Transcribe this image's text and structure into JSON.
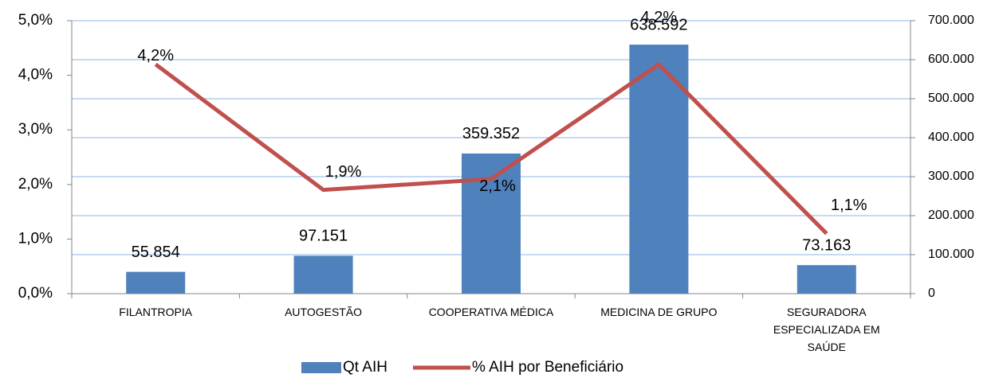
{
  "chart_data": {
    "type": "bar_line",
    "categories": [
      "FILANTROPIA",
      "AUTOGESTÃO",
      "COOPERATIVA MÉDICA",
      "MEDICINA DE GRUPO",
      "SEGURADORA ESPECIALIZADA EM SAÚDE"
    ],
    "series": [
      {
        "name": "Qt AIH",
        "type": "bar",
        "color": "#4f81bd",
        "axis": "y2",
        "values": [
          55854,
          97151,
          359352,
          638592,
          73163
        ],
        "value_labels": [
          "55.854",
          "97.151",
          "359.352",
          "638.592",
          "73.163"
        ]
      },
      {
        "name": "% AIH por Beneficiário",
        "type": "line",
        "color": "#c0504d",
        "axis": "y",
        "values": [
          4.2,
          1.9,
          2.1,
          4.2,
          1.1
        ],
        "value_labels": [
          "4,2%",
          "1,9%",
          "2,1%",
          "4,2%",
          "1,1%"
        ]
      }
    ],
    "ylim": [
      0,
      5
    ],
    "yticks": [
      {
        "value": 0,
        "label": "0,0%"
      },
      {
        "value": 1,
        "label": "1,0%"
      },
      {
        "value": 2,
        "label": "2,0%"
      },
      {
        "value": 3,
        "label": "3,0%"
      },
      {
        "value": 4,
        "label": "4,0%"
      },
      {
        "value": 5,
        "label": "5,0%"
      }
    ],
    "y2lim": [
      0,
      700000
    ],
    "y2ticks": [
      0,
      {
        "value": 100000,
        "label": "100.000"
      },
      {
        "value": 200000,
        "label": "200.000"
      },
      {
        "value": 300000,
        "label": "300.000"
      },
      {
        "value": 400000,
        "label": "400.000"
      },
      {
        "value": 500000,
        "label": "500.000"
      },
      {
        "value": 600000,
        "label": "600.000"
      },
      {
        "value": 700000,
        "label": "700.000"
      }
    ],
    "grid": true,
    "legend": "bottom"
  }
}
